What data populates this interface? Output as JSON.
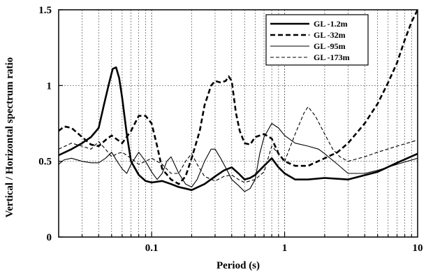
{
  "chart_data": {
    "type": "line",
    "xlabel": "Period (s)",
    "ylabel": "Vertical / Horizontal spectrum ratio",
    "xscale": "log",
    "xlim": [
      0.02,
      10
    ],
    "ylim": [
      0,
      1.5
    ],
    "grid": true,
    "legend_position": "top-right",
    "x_tick_labels": [
      "0.1",
      "1",
      "10"
    ],
    "y_tick_labels": [
      "0",
      "0.5",
      "1",
      "1.5"
    ],
    "series": [
      {
        "name": "GL -1.2m",
        "style": "solid-thick",
        "points": [
          [
            0.02,
            0.54
          ],
          [
            0.025,
            0.58
          ],
          [
            0.03,
            0.62
          ],
          [
            0.035,
            0.66
          ],
          [
            0.04,
            0.72
          ],
          [
            0.044,
            0.88
          ],
          [
            0.048,
            1.02
          ],
          [
            0.051,
            1.11
          ],
          [
            0.054,
            1.12
          ],
          [
            0.057,
            1.05
          ],
          [
            0.06,
            0.92
          ],
          [
            0.065,
            0.68
          ],
          [
            0.07,
            0.5
          ],
          [
            0.08,
            0.41
          ],
          [
            0.09,
            0.37
          ],
          [
            0.1,
            0.36
          ],
          [
            0.12,
            0.37
          ],
          [
            0.14,
            0.35
          ],
          [
            0.16,
            0.33
          ],
          [
            0.18,
            0.32
          ],
          [
            0.2,
            0.31
          ],
          [
            0.25,
            0.35
          ],
          [
            0.3,
            0.4
          ],
          [
            0.35,
            0.44
          ],
          [
            0.4,
            0.46
          ],
          [
            0.45,
            0.42
          ],
          [
            0.5,
            0.38
          ],
          [
            0.55,
            0.39
          ],
          [
            0.6,
            0.41
          ],
          [
            0.7,
            0.47
          ],
          [
            0.8,
            0.52
          ],
          [
            0.9,
            0.46
          ],
          [
            1.0,
            0.42
          ],
          [
            1.2,
            0.38
          ],
          [
            1.5,
            0.38
          ],
          [
            2.0,
            0.39
          ],
          [
            3.0,
            0.38
          ],
          [
            5.0,
            0.43
          ],
          [
            7.0,
            0.49
          ],
          [
            10.0,
            0.55
          ]
        ]
      },
      {
        "name": "GL -32m",
        "style": "dashed-thick",
        "points": [
          [
            0.02,
            0.7
          ],
          [
            0.022,
            0.73
          ],
          [
            0.025,
            0.72
          ],
          [
            0.03,
            0.66
          ],
          [
            0.035,
            0.61
          ],
          [
            0.04,
            0.6
          ],
          [
            0.045,
            0.64
          ],
          [
            0.05,
            0.67
          ],
          [
            0.06,
            0.62
          ],
          [
            0.07,
            0.7
          ],
          [
            0.08,
            0.8
          ],
          [
            0.09,
            0.8
          ],
          [
            0.1,
            0.75
          ],
          [
            0.11,
            0.6
          ],
          [
            0.12,
            0.45
          ],
          [
            0.14,
            0.38
          ],
          [
            0.16,
            0.35
          ],
          [
            0.18,
            0.4
          ],
          [
            0.2,
            0.52
          ],
          [
            0.23,
            0.7
          ],
          [
            0.25,
            0.87
          ],
          [
            0.28,
            1.0
          ],
          [
            0.3,
            1.03
          ],
          [
            0.33,
            1.02
          ],
          [
            0.36,
            1.03
          ],
          [
            0.38,
            1.06
          ],
          [
            0.4,
            1.03
          ],
          [
            0.43,
            0.82
          ],
          [
            0.46,
            0.7
          ],
          [
            0.5,
            0.62
          ],
          [
            0.55,
            0.61
          ],
          [
            0.6,
            0.66
          ],
          [
            0.7,
            0.68
          ],
          [
            0.8,
            0.65
          ],
          [
            0.9,
            0.55
          ],
          [
            1.0,
            0.5
          ],
          [
            1.2,
            0.47
          ],
          [
            1.5,
            0.47
          ],
          [
            2.0,
            0.52
          ],
          [
            2.5,
            0.56
          ],
          [
            3.0,
            0.62
          ],
          [
            4.0,
            0.75
          ],
          [
            5.0,
            0.88
          ],
          [
            6.0,
            1.02
          ],
          [
            7.0,
            1.15
          ],
          [
            8.0,
            1.3
          ],
          [
            9.0,
            1.42
          ],
          [
            10.0,
            1.5
          ]
        ]
      },
      {
        "name": "GL -95m",
        "style": "solid-thin",
        "points": [
          [
            0.02,
            0.48
          ],
          [
            0.022,
            0.51
          ],
          [
            0.025,
            0.52
          ],
          [
            0.03,
            0.5
          ],
          [
            0.035,
            0.49
          ],
          [
            0.04,
            0.49
          ],
          [
            0.045,
            0.52
          ],
          [
            0.05,
            0.56
          ],
          [
            0.055,
            0.5
          ],
          [
            0.06,
            0.45
          ],
          [
            0.065,
            0.42
          ],
          [
            0.07,
            0.48
          ],
          [
            0.08,
            0.56
          ],
          [
            0.09,
            0.5
          ],
          [
            0.1,
            0.43
          ],
          [
            0.11,
            0.38
          ],
          [
            0.12,
            0.42
          ],
          [
            0.13,
            0.5
          ],
          [
            0.14,
            0.53
          ],
          [
            0.16,
            0.42
          ],
          [
            0.18,
            0.35
          ],
          [
            0.2,
            0.33
          ],
          [
            0.22,
            0.38
          ],
          [
            0.25,
            0.5
          ],
          [
            0.28,
            0.58
          ],
          [
            0.3,
            0.58
          ],
          [
            0.33,
            0.52
          ],
          [
            0.37,
            0.44
          ],
          [
            0.4,
            0.38
          ],
          [
            0.45,
            0.34
          ],
          [
            0.5,
            0.3
          ],
          [
            0.55,
            0.32
          ],
          [
            0.6,
            0.38
          ],
          [
            0.65,
            0.55
          ],
          [
            0.7,
            0.66
          ],
          [
            0.8,
            0.75
          ],
          [
            0.9,
            0.72
          ],
          [
            1.0,
            0.67
          ],
          [
            1.2,
            0.62
          ],
          [
            1.5,
            0.6
          ],
          [
            1.8,
            0.58
          ],
          [
            2.0,
            0.55
          ],
          [
            2.5,
            0.48
          ],
          [
            3.0,
            0.42
          ],
          [
            4.0,
            0.42
          ],
          [
            5.0,
            0.44
          ],
          [
            7.0,
            0.48
          ],
          [
            10.0,
            0.52
          ]
        ]
      },
      {
        "name": "GL -173m",
        "style": "dashed-thin",
        "points": [
          [
            0.02,
            0.58
          ],
          [
            0.025,
            0.62
          ],
          [
            0.03,
            0.6
          ],
          [
            0.035,
            0.58
          ],
          [
            0.04,
            0.63
          ],
          [
            0.045,
            0.58
          ],
          [
            0.05,
            0.53
          ],
          [
            0.055,
            0.55
          ],
          [
            0.06,
            0.56
          ],
          [
            0.07,
            0.52
          ],
          [
            0.08,
            0.48
          ],
          [
            0.09,
            0.5
          ],
          [
            0.1,
            0.52
          ],
          [
            0.12,
            0.48
          ],
          [
            0.14,
            0.42
          ],
          [
            0.16,
            0.42
          ],
          [
            0.18,
            0.5
          ],
          [
            0.2,
            0.55
          ],
          [
            0.22,
            0.48
          ],
          [
            0.25,
            0.4
          ],
          [
            0.3,
            0.37
          ],
          [
            0.35,
            0.4
          ],
          [
            0.4,
            0.41
          ],
          [
            0.45,
            0.38
          ],
          [
            0.5,
            0.36
          ],
          [
            0.6,
            0.38
          ],
          [
            0.7,
            0.43
          ],
          [
            0.8,
            0.6
          ],
          [
            0.9,
            0.55
          ],
          [
            1.0,
            0.5
          ],
          [
            1.2,
            0.68
          ],
          [
            1.4,
            0.82
          ],
          [
            1.5,
            0.86
          ],
          [
            1.7,
            0.8
          ],
          [
            2.0,
            0.68
          ],
          [
            2.3,
            0.58
          ],
          [
            2.6,
            0.53
          ],
          [
            3.0,
            0.5
          ],
          [
            4.0,
            0.53
          ],
          [
            5.0,
            0.56
          ],
          [
            7.0,
            0.6
          ],
          [
            10.0,
            0.64
          ]
        ]
      }
    ]
  }
}
